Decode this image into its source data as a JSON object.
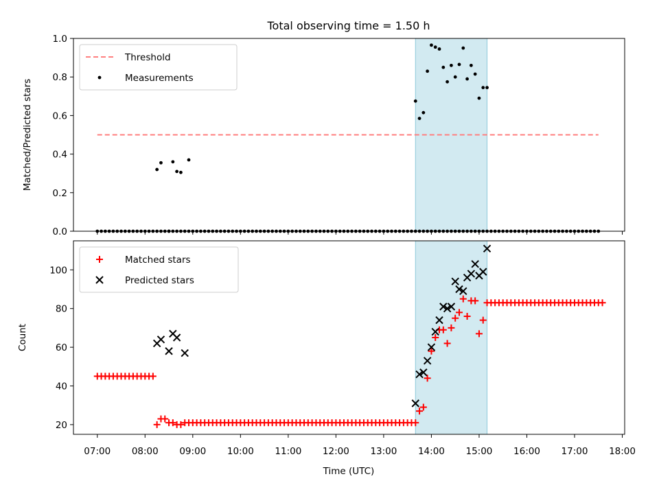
{
  "chart_data": {
    "title": "Total observing time = 1.50 h",
    "xlabel": "Time (UTC)",
    "xticks": [
      "07:00",
      "08:00",
      "09:00",
      "10:00",
      "11:00",
      "12:00",
      "13:00",
      "14:00",
      "15:00",
      "16:00",
      "17:00",
      "18:00"
    ],
    "shaded_span": {
      "start": "13:40",
      "end": "15:10",
      "color": "#add8e6"
    },
    "panels": [
      {
        "type": "scatter",
        "ylabel": "Matched/Predicted stars",
        "ylim": [
          0,
          1.0
        ],
        "yticks": [
          "0.0",
          "0.2",
          "0.4",
          "0.6",
          "0.8",
          "1.0"
        ],
        "legend_position": "upper-left",
        "threshold": {
          "name": "Threshold",
          "y": 0.5,
          "x_start": "07:00",
          "x_end": "17:30",
          "color": "#ff7f7f"
        },
        "series": [
          {
            "name": "Measurements",
            "marker": "dot",
            "color": "#000000",
            "zeros": {
              "start": "07:00",
              "end": "17:30",
              "step_min": 5
            },
            "points": [
              [
                "08:15",
                0.32
              ],
              [
                "08:20",
                0.355
              ],
              [
                "08:30",
                0.0
              ],
              [
                "08:35",
                0.36
              ],
              [
                "08:40",
                0.31
              ],
              [
                "08:45",
                0.305
              ],
              [
                "08:55",
                0.37
              ],
              [
                "13:40",
                0.675
              ],
              [
                "13:45",
                0.585
              ],
              [
                "13:50",
                0.615
              ],
              [
                "13:55",
                0.83
              ],
              [
                "14:00",
                0.965
              ],
              [
                "14:05",
                0.955
              ],
              [
                "14:10",
                0.945
              ],
              [
                "14:15",
                0.85
              ],
              [
                "14:20",
                0.775
              ],
              [
                "14:25",
                0.86
              ],
              [
                "14:30",
                0.8
              ],
              [
                "14:35",
                0.865
              ],
              [
                "14:40",
                0.95
              ],
              [
                "14:45",
                0.79
              ],
              [
                "14:50",
                0.86
              ],
              [
                "14:55",
                0.815
              ],
              [
                "15:00",
                0.69
              ],
              [
                "15:05",
                0.745
              ],
              [
                "15:10",
                0.745
              ]
            ]
          }
        ]
      },
      {
        "type": "scatter",
        "ylabel": "Count",
        "ylim": [
          15,
          115
        ],
        "yticks": [
          "20",
          "40",
          "60",
          "80",
          "100"
        ],
        "legend_position": "upper-left",
        "series": [
          {
            "name": "Matched stars",
            "marker": "plus",
            "color": "#ff0000",
            "runs": [
              {
                "start": "07:00",
                "end": "08:10",
                "step_min": 5,
                "value": 45
              },
              {
                "start": "08:15",
                "end": "08:15",
                "step_min": 5,
                "value": 20
              },
              {
                "start": "08:20",
                "end": "08:20",
                "step_min": 5,
                "value": 23
              },
              {
                "start": "08:25",
                "end": "08:25",
                "step_min": 5,
                "value": 23
              },
              {
                "start": "08:30",
                "end": "08:30",
                "step_min": 5,
                "value": 21
              },
              {
                "start": "08:35",
                "end": "08:35",
                "step_min": 5,
                "value": 21
              },
              {
                "start": "08:40",
                "end": "08:40",
                "step_min": 5,
                "value": 20
              },
              {
                "start": "08:45",
                "end": "08:45",
                "step_min": 5,
                "value": 20
              },
              {
                "start": "08:50",
                "end": "13:35",
                "step_min": 5,
                "value": 21
              },
              {
                "start": "15:10",
                "end": "17:35",
                "step_min": 5,
                "value": 83
              }
            ],
            "points": [
              [
                "13:40",
                21
              ],
              [
                "13:45",
                27
              ],
              [
                "13:50",
                29
              ],
              [
                "13:55",
                44
              ],
              [
                "14:00",
                58
              ],
              [
                "14:05",
                65
              ],
              [
                "14:10",
                69
              ],
              [
                "14:15",
                69
              ],
              [
                "14:20",
                62
              ],
              [
                "14:25",
                70
              ],
              [
                "14:30",
                75
              ],
              [
                "14:35",
                78
              ],
              [
                "14:40",
                85
              ],
              [
                "14:45",
                76
              ],
              [
                "14:50",
                84
              ],
              [
                "14:55",
                84
              ],
              [
                "15:00",
                67
              ],
              [
                "15:05",
                74
              ]
            ]
          },
          {
            "name": "Predicted stars",
            "marker": "x",
            "color": "#000000",
            "points": [
              [
                "08:15",
                62
              ],
              [
                "08:20",
                64
              ],
              [
                "08:30",
                58
              ],
              [
                "08:35",
                67
              ],
              [
                "08:40",
                65
              ],
              [
                "08:50",
                57
              ],
              [
                "13:40",
                31
              ],
              [
                "13:45",
                46
              ],
              [
                "13:50",
                47
              ],
              [
                "13:55",
                53
              ],
              [
                "14:00",
                60
              ],
              [
                "14:05",
                68
              ],
              [
                "14:10",
                74
              ],
              [
                "14:15",
                81
              ],
              [
                "14:20",
                80
              ],
              [
                "14:25",
                81
              ],
              [
                "14:30",
                94
              ],
              [
                "14:35",
                90
              ],
              [
                "14:40",
                89
              ],
              [
                "14:45",
                96
              ],
              [
                "14:50",
                98
              ],
              [
                "14:55",
                103
              ],
              [
                "15:00",
                97
              ],
              [
                "15:05",
                99
              ],
              [
                "15:10",
                111
              ]
            ]
          }
        ]
      }
    ]
  }
}
